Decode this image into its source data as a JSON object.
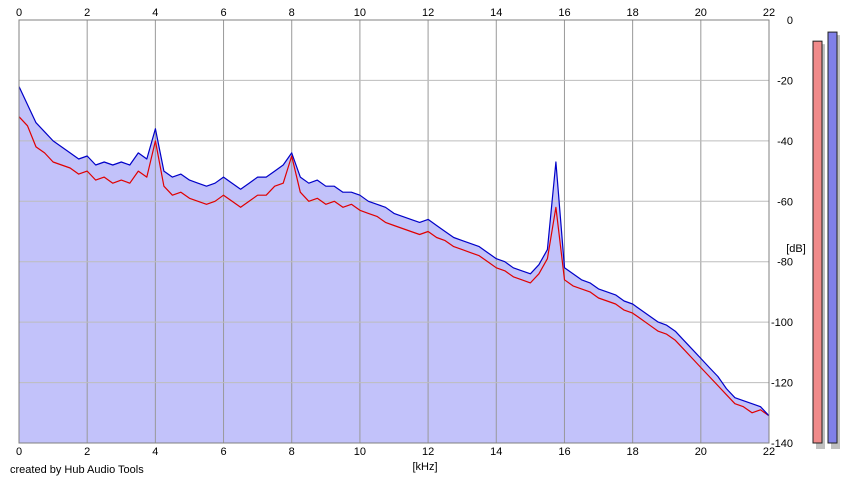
{
  "chart_data": {
    "type": "area",
    "title": "",
    "xlabel": "[kHz]",
    "ylabel": "[dB]",
    "xlim": [
      0,
      22
    ],
    "ylim": [
      -140,
      0
    ],
    "x_ticks": [
      "0",
      "2",
      "4",
      "6",
      "8",
      "10",
      "12",
      "14",
      "16",
      "18",
      "20",
      "22"
    ],
    "y_ticks": [
      "0",
      "-20",
      "-40",
      "-60",
      "-80",
      "-100",
      "-120",
      "-140"
    ],
    "grid": true,
    "colors": {
      "fill": "#c2c2fa",
      "red_line": "#e00000",
      "blue_line": "#0000c8",
      "grid": "#999999",
      "meter_red": "#f08a8a",
      "meter_blue": "#8080e8"
    },
    "series": [
      {
        "color": "red",
        "x": [
          0,
          0.25,
          0.5,
          0.75,
          1,
          1.25,
          1.5,
          1.75,
          2,
          2.25,
          2.5,
          2.75,
          3,
          3.25,
          3.5,
          3.75,
          4,
          4.25,
          4.5,
          4.75,
          5,
          5.25,
          5.5,
          5.75,
          6,
          6.25,
          6.5,
          6.75,
          7,
          7.25,
          7.5,
          7.75,
          8,
          8.25,
          8.5,
          8.75,
          9,
          9.25,
          9.5,
          9.75,
          10,
          10.25,
          10.5,
          10.75,
          11,
          11.25,
          11.5,
          11.75,
          12,
          12.25,
          12.5,
          12.75,
          13,
          13.25,
          13.5,
          13.75,
          14,
          14.25,
          14.5,
          14.75,
          15,
          15.25,
          15.5,
          15.75,
          16,
          16.25,
          16.5,
          16.75,
          17,
          17.25,
          17.5,
          17.75,
          18,
          18.25,
          18.5,
          18.75,
          19,
          19.25,
          19.5,
          19.75,
          20,
          20.25,
          20.5,
          20.75,
          21,
          21.25,
          21.5,
          21.75,
          22
        ],
        "y": [
          -32,
          -35,
          -42,
          -44,
          -47,
          -48,
          -49,
          -51,
          -50,
          -53,
          -52,
          -54,
          -53,
          -54,
          -50,
          -52,
          -40,
          -55,
          -58,
          -57,
          -59,
          -60,
          -61,
          -60,
          -58,
          -60,
          -62,
          -60,
          -58,
          -58,
          -55,
          -54,
          -45,
          -57,
          -60,
          -59,
          -61,
          -60,
          -62,
          -61,
          -63,
          -64,
          -65,
          -67,
          -68,
          -69,
          -70,
          -71,
          -70,
          -72,
          -73,
          -75,
          -76,
          -77,
          -78,
          -80,
          -82,
          -83,
          -85,
          -86,
          -87,
          -84,
          -79,
          -62,
          -86,
          -88,
          -89,
          -90,
          -92,
          -93,
          -94,
          -96,
          -97,
          -99,
          -101,
          -103,
          -104,
          -106,
          -109,
          -112,
          -115,
          -118,
          -121,
          -124,
          -127,
          -128,
          -130,
          -129,
          -131
        ]
      },
      {
        "color": "blue",
        "x": [
          0,
          0.25,
          0.5,
          0.75,
          1,
          1.25,
          1.5,
          1.75,
          2,
          2.25,
          2.5,
          2.75,
          3,
          3.25,
          3.5,
          3.75,
          4,
          4.25,
          4.5,
          4.75,
          5,
          5.25,
          5.5,
          5.75,
          6,
          6.25,
          6.5,
          6.75,
          7,
          7.25,
          7.5,
          7.75,
          8,
          8.25,
          8.5,
          8.75,
          9,
          9.25,
          9.5,
          9.75,
          10,
          10.25,
          10.5,
          10.75,
          11,
          11.25,
          11.5,
          11.75,
          12,
          12.25,
          12.5,
          12.75,
          13,
          13.25,
          13.5,
          13.75,
          14,
          14.25,
          14.5,
          14.75,
          15,
          15.25,
          15.5,
          15.75,
          16,
          16.25,
          16.5,
          16.75,
          17,
          17.25,
          17.5,
          17.75,
          18,
          18.25,
          18.5,
          18.75,
          19,
          19.25,
          19.5,
          19.75,
          20,
          20.25,
          20.5,
          20.75,
          21,
          21.25,
          21.5,
          21.75,
          22
        ],
        "y": [
          -22,
          -28,
          -34,
          -37,
          -40,
          -42,
          -44,
          -46,
          -45,
          -48,
          -47,
          -48,
          -47,
          -48,
          -44,
          -46,
          -36,
          -50,
          -52,
          -51,
          -53,
          -54,
          -55,
          -54,
          -52,
          -54,
          -56,
          -54,
          -52,
          -52,
          -50,
          -48,
          -44,
          -52,
          -54,
          -53,
          -55,
          -55,
          -57,
          -57,
          -58,
          -60,
          -61,
          -62,
          -64,
          -65,
          -66,
          -67,
          -66,
          -68,
          -70,
          -72,
          -73,
          -74,
          -75,
          -77,
          -79,
          -80,
          -82,
          -83,
          -84,
          -81,
          -76,
          -47,
          -82,
          -84,
          -86,
          -87,
          -89,
          -90,
          -91,
          -93,
          -94,
          -96,
          -98,
          -100,
          -101,
          -103,
          -106,
          -109,
          -112,
          -115,
          -118,
          -122,
          -125,
          -126,
          -127,
          -128,
          -131
        ]
      }
    ],
    "meters": [
      {
        "color": "red",
        "value": -7
      },
      {
        "color": "blue",
        "value": -4
      }
    ]
  },
  "footer": {
    "credit": "created by Hub Audio Tools"
  }
}
